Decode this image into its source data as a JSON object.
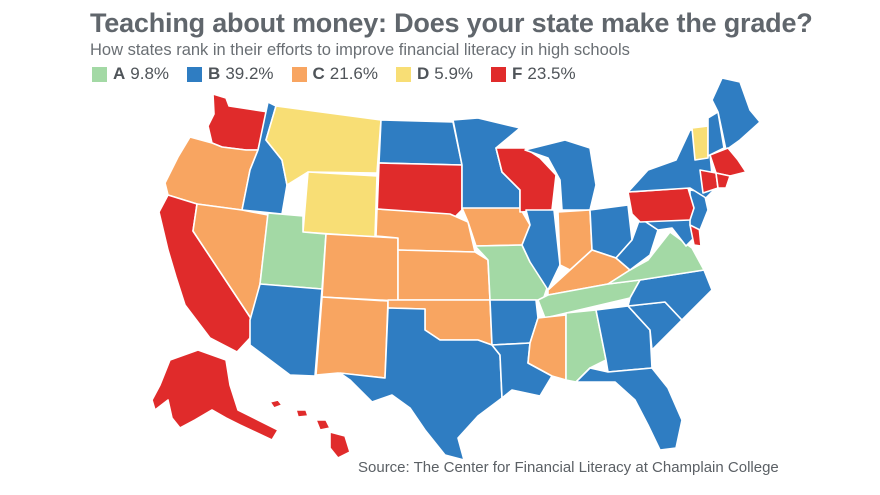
{
  "title": "Teaching about money: Does your state make the grade?",
  "subtitle": "How states rank in their efforts to improve financial literacy in high schools",
  "legend": [
    {
      "grade": "A",
      "pct": "9.8%",
      "color": "#a3d9a5"
    },
    {
      "grade": "B",
      "pct": "39.2%",
      "color": "#2f7dc2"
    },
    {
      "grade": "C",
      "pct": "21.6%",
      "color": "#f8a561"
    },
    {
      "grade": "D",
      "pct": "5.9%",
      "color": "#f8de75"
    },
    {
      "grade": "F",
      "pct": "23.5%",
      "color": "#e02b2b"
    }
  ],
  "source": "Source: The Center for Financial Literacy at Champlain College",
  "grades": {
    "WA": "F",
    "OR": "C",
    "CA": "F",
    "ID": "B",
    "NV": "C",
    "MT": "D",
    "WY": "D",
    "UT": "A",
    "AZ": "B",
    "CO": "C",
    "NM": "C",
    "ND": "B",
    "SD": "F",
    "NE": "C",
    "KS": "C",
    "OK": "C",
    "TX": "B",
    "MN": "B",
    "IA": "C",
    "MO": "A",
    "AR": "B",
    "LA": "B",
    "WI": "F",
    "IL": "B",
    "MI": "B",
    "IN": "C",
    "OH": "B",
    "KY": "C",
    "TN": "A",
    "MS": "C",
    "AL": "A",
    "GA": "B",
    "FL": "B",
    "SC": "B",
    "NC": "B",
    "VA": "A",
    "WV": "B",
    "MD": "B",
    "DE": "F",
    "NJ": "B",
    "PA": "F",
    "NY": "B",
    "CT": "F",
    "RI": "F",
    "MA": "F",
    "VT": "D",
    "NH": "B",
    "ME": "B",
    "AK": "F",
    "HI": "F"
  }
}
